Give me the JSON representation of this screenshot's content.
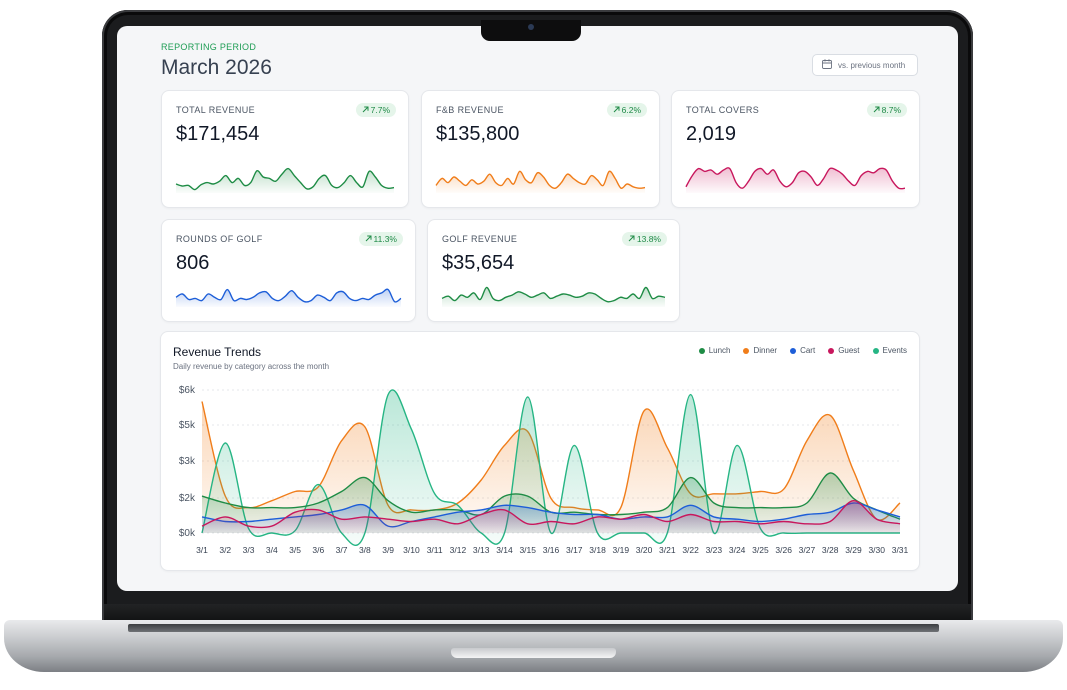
{
  "header": {
    "period_label": "REPORTING PERIOD",
    "period_title": "March 2026",
    "compare_label": "vs. previous month",
    "compare_icon": "calendar-icon"
  },
  "kpis": [
    {
      "key": "total_revenue",
      "label": "TOTAL REVENUE",
      "value": "$171,454",
      "change": "7.7%",
      "color": "#1e8c45",
      "trend": [
        0.25,
        0.18,
        0.2,
        0.05,
        0.22,
        0.3,
        0.25,
        0.35,
        0.55,
        0.3,
        0.45,
        0.2,
        0.3,
        0.72,
        0.5,
        0.45,
        0.35,
        0.6,
        0.8,
        0.55,
        0.3,
        0.08,
        0.15,
        0.45,
        0.55,
        0.2,
        0.12,
        0.3,
        0.55,
        0.3,
        0.15,
        0.7,
        0.5,
        0.2,
        0.1,
        0.12
      ]
    },
    {
      "key": "fb_revenue",
      "label": "F&B REVENUE",
      "value": "$135,800",
      "change": "6.2%",
      "color": "#f07d1a",
      "trend": [
        0.2,
        0.45,
        0.3,
        0.5,
        0.35,
        0.2,
        0.4,
        0.25,
        0.35,
        0.6,
        0.3,
        0.2,
        0.45,
        0.25,
        0.7,
        0.4,
        0.3,
        0.65,
        0.5,
        0.2,
        0.1,
        0.3,
        0.6,
        0.45,
        0.3,
        0.25,
        0.55,
        0.4,
        0.2,
        0.7,
        0.45,
        0.1,
        0.25,
        0.15,
        0.1,
        0.12
      ]
    },
    {
      "key": "total_covers",
      "label": "TOTAL COVERS",
      "value": "2,019",
      "change": "8.7%",
      "color": "#c8175d",
      "trend": [
        0.15,
        0.55,
        0.8,
        0.7,
        0.75,
        0.6,
        0.75,
        0.8,
        0.3,
        0.1,
        0.35,
        0.7,
        0.8,
        0.6,
        0.75,
        0.35,
        0.15,
        0.3,
        0.65,
        0.7,
        0.5,
        0.2,
        0.45,
        0.8,
        0.75,
        0.6,
        0.35,
        0.2,
        0.55,
        0.7,
        0.65,
        0.8,
        0.75,
        0.35,
        0.1,
        0.1
      ]
    },
    {
      "key": "rounds_of_golf",
      "label": "ROUNDS OF GOLF",
      "value": "806",
      "change": "11.3%",
      "color": "#1d5ed8",
      "trend": [
        0.35,
        0.5,
        0.25,
        0.3,
        0.2,
        0.5,
        0.35,
        0.25,
        0.7,
        0.2,
        0.3,
        0.25,
        0.35,
        0.55,
        0.6,
        0.3,
        0.2,
        0.4,
        0.65,
        0.35,
        0.15,
        0.2,
        0.45,
        0.35,
        0.2,
        0.55,
        0.6,
        0.3,
        0.2,
        0.3,
        0.25,
        0.45,
        0.55,
        0.7,
        0.15,
        0.3
      ]
    },
    {
      "key": "golf_revenue",
      "label": "GOLF REVENUE",
      "value": "$35,654",
      "change": "13.8%",
      "color": "#1e8c45",
      "trend": [
        0.3,
        0.4,
        0.2,
        0.45,
        0.35,
        0.55,
        0.25,
        0.8,
        0.3,
        0.2,
        0.35,
        0.45,
        0.6,
        0.5,
        0.35,
        0.45,
        0.55,
        0.3,
        0.4,
        0.5,
        0.45,
        0.35,
        0.4,
        0.55,
        0.5,
        0.3,
        0.15,
        0.2,
        0.35,
        0.3,
        0.5,
        0.3,
        0.8,
        0.3,
        0.4,
        0.35
      ]
    }
  ],
  "chart_data": {
    "type": "area",
    "title": "Revenue Trends",
    "subtitle": "Daily revenue by category across the month",
    "categories": [
      "3/1",
      "3/2",
      "3/3",
      "3/4",
      "3/5",
      "3/6",
      "3/7",
      "3/8",
      "3/9",
      "3/10",
      "3/11",
      "3/12",
      "3/13",
      "3/14",
      "3/15",
      "3/16",
      "3/17",
      "3/18",
      "3/19",
      "3/20",
      "3/21",
      "3/22",
      "3/23",
      "3/24",
      "3/25",
      "3/26",
      "3/27",
      "3/28",
      "3/29",
      "3/30",
      "3/31"
    ],
    "y_ticks": [
      "$0k",
      "$2k",
      "$3k",
      "$5k",
      "$6k"
    ],
    "ylim": [
      0,
      6200
    ],
    "grid": true,
    "legend_position": "top-right",
    "series": [
      {
        "name": "Lunch",
        "color": "#1e8c45",
        "values": [
          1600,
          1300,
          1100,
          1100,
          1100,
          1300,
          1800,
          2400,
          1400,
          900,
          1000,
          1000,
          800,
          1600,
          1600,
          900,
          900,
          800,
          800,
          900,
          1100,
          2400,
          1300,
          1100,
          1100,
          1100,
          1300,
          2600,
          1500,
          1000,
          600
        ]
      },
      {
        "name": "Dinner",
        "color": "#f07d1a",
        "values": [
          5700,
          1600,
          1100,
          1400,
          1800,
          2000,
          4000,
          4600,
          1200,
          1000,
          1000,
          1300,
          2300,
          3800,
          4400,
          1500,
          1100,
          1000,
          1100,
          5300,
          3700,
          1700,
          1700,
          1700,
          1800,
          1900,
          4000,
          5100,
          2700,
          600,
          1300
        ]
      },
      {
        "name": "Cart",
        "color": "#1d5ed8",
        "values": [
          700,
          500,
          500,
          600,
          700,
          800,
          1000,
          1200,
          300,
          500,
          700,
          900,
          1000,
          1200,
          1100,
          900,
          800,
          800,
          600,
          700,
          700,
          1200,
          700,
          600,
          500,
          600,
          800,
          900,
          1300,
          1000,
          700
        ]
      },
      {
        "name": "Guest",
        "color": "#c8175d",
        "values": [
          300,
          700,
          300,
          300,
          900,
          1000,
          600,
          700,
          600,
          500,
          600,
          400,
          800,
          1000,
          400,
          500,
          400,
          700,
          600,
          800,
          500,
          800,
          500,
          500,
          400,
          500,
          400,
          500,
          1400,
          600,
          400
        ]
      },
      {
        "name": "Events",
        "color": "#26b584",
        "values": [
          0,
          3900,
          200,
          0,
          100,
          2100,
          0,
          0,
          6000,
          4500,
          1700,
          1200,
          0,
          0,
          5900,
          0,
          3800,
          0,
          0,
          0,
          0,
          6000,
          0,
          3800,
          200,
          0,
          0,
          0,
          0,
          0,
          0
        ]
      }
    ]
  }
}
